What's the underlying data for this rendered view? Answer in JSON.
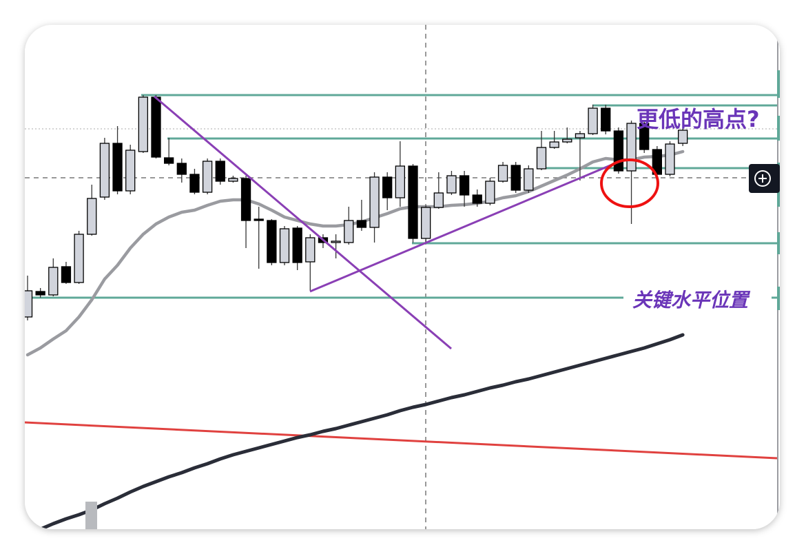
{
  "chart_data": {
    "type": "candlestick",
    "categories": [
      null,
      null,
      null,
      null,
      null,
      null,
      null,
      null,
      null,
      null,
      null,
      null,
      null,
      null,
      null,
      null,
      null,
      null,
      null,
      null,
      null,
      null,
      null,
      null,
      null,
      null,
      null,
      null,
      null,
      null,
      null,
      null,
      null,
      null,
      null,
      null,
      null,
      null,
      null,
      null,
      null,
      null,
      null,
      null,
      null,
      null,
      null,
      null,
      null,
      null,
      null,
      null
    ],
    "open": [
      308,
      345,
      340,
      381,
      358,
      428,
      482,
      560,
      491,
      548,
      627,
      539,
      531,
      515,
      489,
      534,
      505,
      509,
      450,
      448,
      387,
      437,
      388,
      423,
      416,
      416,
      448,
      438,
      511,
      481,
      527,
      422,
      467,
      488,
      513,
      485,
      473,
      505,
      528,
      492,
      523,
      554,
      562,
      568,
      574,
      611,
      578,
      520,
      589,
      551,
      515,
      560
    ],
    "high": [
      368,
      350,
      393,
      388,
      433,
      500,
      568,
      585,
      558,
      630,
      630,
      568,
      538,
      523,
      538,
      538,
      513,
      513,
      468,
      450,
      440,
      440,
      428,
      428,
      428,
      468,
      478,
      518,
      518,
      563,
      530,
      470,
      518,
      520,
      520,
      493,
      510,
      533,
      533,
      528,
      578,
      578,
      583,
      578,
      616,
      616,
      583,
      593,
      593,
      556,
      563,
      582
    ],
    "low": [
      303,
      336,
      338,
      356,
      356,
      426,
      478,
      486,
      486,
      546,
      538,
      528,
      503,
      486,
      486,
      500,
      503,
      408,
      378,
      383,
      383,
      376,
      346,
      408,
      393,
      413,
      433,
      416,
      463,
      468,
      416,
      416,
      465,
      485,
      468,
      468,
      470,
      503,
      488,
      488,
      521,
      552,
      560,
      506,
      572,
      573,
      516,
      443,
      546,
      512,
      512,
      556
    ],
    "close": [
      346,
      340,
      380,
      358,
      428,
      480,
      560,
      491,
      550,
      627,
      540,
      531,
      515,
      489,
      534,
      505,
      509,
      448,
      448,
      387,
      436,
      387,
      423,
      416,
      418,
      448,
      438,
      511,
      481,
      527,
      422,
      467,
      488,
      513,
      485,
      473,
      505,
      528,
      492,
      523,
      554,
      562,
      566,
      574,
      611,
      578,
      520,
      589,
      551,
      515,
      559,
      579
    ],
    "up_color": "#d1d4dc",
    "down_color": "#000000",
    "lines": [
      {
        "color": "#9a9ba0",
        "values": [
          253,
          263,
          276,
          288,
          308,
          333,
          363,
          383,
          408,
          428,
          443,
          453,
          460,
          463,
          470,
          476,
          478,
          478,
          472,
          463,
          453,
          448,
          443,
          440,
          440,
          442,
          446,
          452,
          458,
          465,
          468,
          468,
          468,
          470,
          471,
          473,
          476,
          481,
          484,
          490,
          498,
          506,
          514,
          523,
          533,
          538,
          536,
          536,
          540,
          541,
          543,
          548
        ]
      },
      {
        "color": "#2a2d38",
        "values": [
          -5,
          0,
          8,
          15,
          21,
          28,
          37,
          45,
          54,
          62,
          69,
          76,
          82,
          89,
          95,
          102,
          108,
          113,
          118,
          123,
          128,
          133,
          137,
          142,
          146,
          151,
          156,
          161,
          166,
          172,
          177,
          181,
          186,
          191,
          195,
          200,
          205,
          209,
          214,
          218,
          223,
          228,
          233,
          238,
          243,
          248,
          253,
          258,
          263,
          269,
          275,
          282
        ]
      }
    ],
    "ylim": [
      0,
      732
    ],
    "annotations": [
      "更低的高点?",
      "关键水平位置"
    ]
  }
}
